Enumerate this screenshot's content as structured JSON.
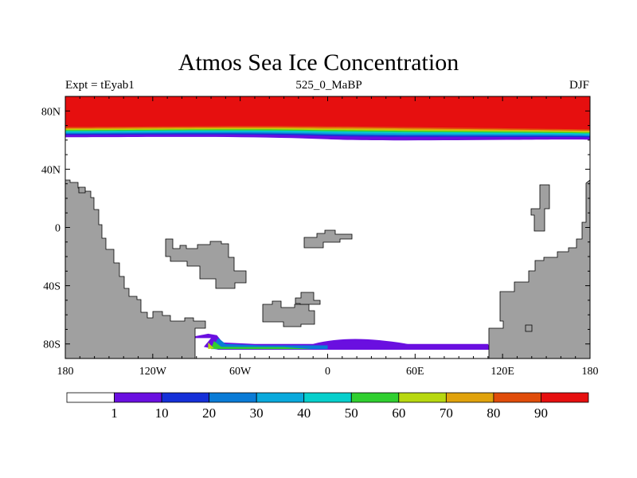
{
  "chart_data": {
    "type": "heatmap",
    "title": "Atmos Sea Ice Concentration",
    "subtitle_left": "Expt = tEyab1",
    "subtitle_center": "525_0_MaBP",
    "subtitle_right": "DJF",
    "x_axis": {
      "range": [
        -180,
        180
      ],
      "ticks": [
        -180,
        -120,
        -60,
        0,
        60,
        120,
        180
      ],
      "tick_labels": [
        "180",
        "120W",
        "60W",
        "0",
        "60E",
        "120E",
        "180"
      ]
    },
    "y_axis": {
      "range": [
        -90,
        90
      ],
      "ticks": [
        80,
        40,
        0,
        -40,
        -80
      ],
      "tick_labels": [
        "80N",
        "40N",
        "0",
        "40S",
        "80S"
      ]
    },
    "colorbar": {
      "levels": [
        1,
        10,
        20,
        30,
        40,
        50,
        60,
        70,
        80,
        90
      ],
      "labels": [
        "1",
        "10",
        "20",
        "30",
        "40",
        "50",
        "60",
        "70",
        "80",
        "90"
      ],
      "colors": [
        "#ffffff",
        "#6a0fe0",
        "#1530d8",
        "#0a7bd6",
        "#0aa9dc",
        "#06cfcc",
        "#30cf30",
        "#b8d810",
        "#e0a20c",
        "#e04c0a",
        "#e60f0f"
      ]
    },
    "ice_bands_north": [
      {
        "value_min": 90,
        "lat_edge": 69.5
      },
      {
        "value_min": 80,
        "lat_edge": 68.7
      },
      {
        "value_min": 70,
        "lat_edge": 68.0
      },
      {
        "value_min": 60,
        "lat_edge": 67.4
      },
      {
        "value_min": 50,
        "lat_edge": 66.8
      },
      {
        "value_min": 40,
        "lat_edge": 66.1
      },
      {
        "value_min": 30,
        "lat_edge": 65.4
      },
      {
        "value_min": 20,
        "lat_edge": 64.8
      },
      {
        "value_min": 10,
        "lat_edge": 64.1
      },
      {
        "value_min": 1,
        "lat_edge": 62.5
      }
    ],
    "land_color": "#a0a0a0"
  }
}
